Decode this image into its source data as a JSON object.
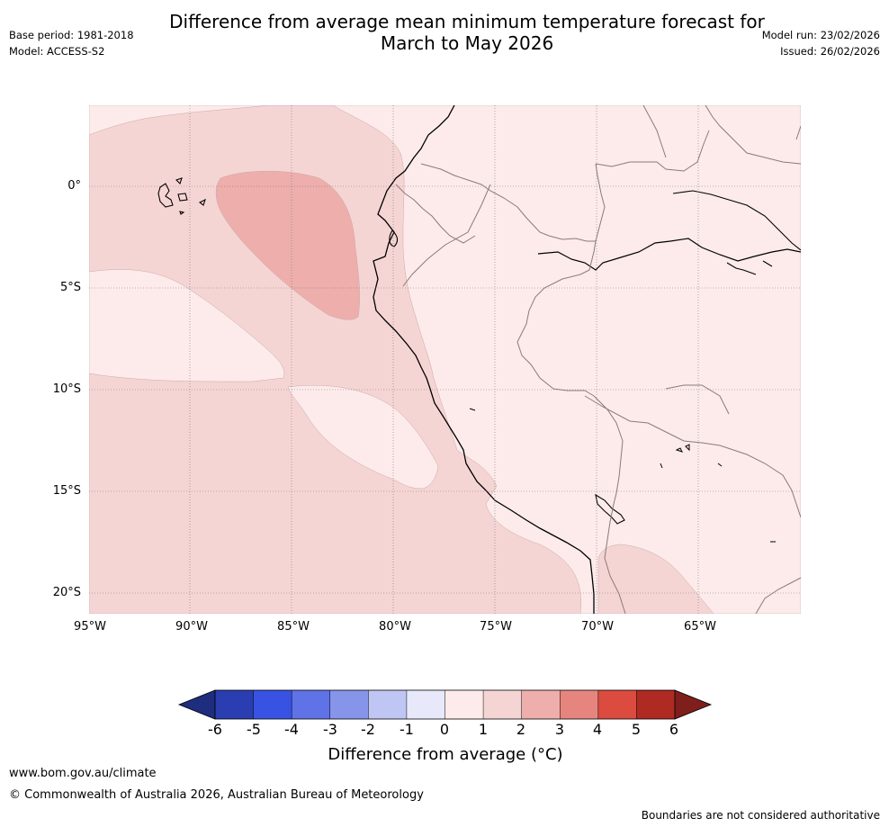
{
  "title": {
    "line1": "Difference from average mean minimum temperature forecast for",
    "line2": "March to May 2026"
  },
  "meta_left": {
    "base_period": "Base period: 1981-2018",
    "model": "Model: ACCESS-S2"
  },
  "meta_right": {
    "model_run": "Model run: 23/02/2026",
    "issued": "Issued: 26/02/2026"
  },
  "map": {
    "region": "Western South America and adjacent eastern Pacific (Ecuador, Peru, western Brazil, Bolivia)",
    "lat_labels": [
      "0°",
      "5°S",
      "10°S",
      "15°S",
      "20°S"
    ],
    "lon_labels": [
      "95°W",
      "90°W",
      "85°W",
      "80°W",
      "75°W",
      "70°W",
      "65°W"
    ],
    "colors": {
      "anom_0_1": "#fcebea",
      "anom_1_2": "#f5d5d4",
      "anom_2_3": "#edaeac",
      "coast": "#000000",
      "border": "#8a7a7a",
      "grid": "#777777"
    }
  },
  "colorbar": {
    "title": "Difference from average (°C)",
    "tick_labels": [
      "-6",
      "-5",
      "-4",
      "-3",
      "-2",
      "-1",
      "0",
      "1",
      "2",
      "3",
      "4",
      "5",
      "6"
    ],
    "low_extend_color": "#1e2d7e",
    "high_extend_color": "#7e1f1b",
    "bin_colors": [
      "#2a3eb1",
      "#3853e3",
      "#5f72e6",
      "#8694ea",
      "#c0c6f4",
      "#e7e9fb",
      "#fcebea",
      "#f5d5d4",
      "#edaeac",
      "#e6857e",
      "#db4b40",
      "#ae2a23"
    ]
  },
  "footer": {
    "url": "www.bom.gov.au/climate",
    "copyright": "© Commonwealth of Australia 2026, Australian Bureau of Meteorology",
    "disclaimer": "Boundaries are not considered authoritative"
  }
}
